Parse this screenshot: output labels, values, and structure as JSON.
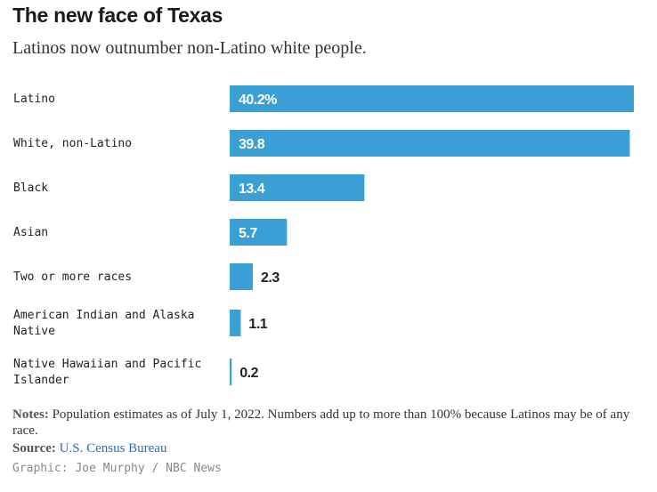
{
  "header": {
    "title": "The new face of Texas",
    "subtitle": "Latinos now outnumber non-Latino white people."
  },
  "footer": {
    "notes_label": "Notes:",
    "notes_text": "Population estimates as of July 1, 2022. Numbers add up to more than 100% because Latinos may be of any race.",
    "source_label": "Source:",
    "source_text": "U.S. Census Bureau",
    "credit": "Graphic: Joe Murphy / NBC News"
  },
  "colors": {
    "bar": "#3a9fd5",
    "label_inside": "#ffffff",
    "label_outside": "#222222",
    "category_text": "#222222",
    "source_link": "#2a6ebb"
  },
  "chart_data": {
    "type": "bar",
    "orientation": "horizontal",
    "categories": [
      "Latino",
      "White, non-Latino",
      "Black",
      "Asian",
      "Two or more races",
      "American Indian and Alaska Native",
      "Native Hawaiian and Pacific Islander"
    ],
    "values": [
      40.2,
      39.8,
      13.4,
      5.7,
      2.3,
      1.1,
      0.2
    ],
    "value_labels": [
      "40.2%",
      "39.8",
      "13.4",
      "5.7",
      "2.3",
      "1.1",
      "0.2"
    ],
    "xlim": [
      0,
      40.2
    ],
    "grid": false,
    "legend": "none"
  }
}
